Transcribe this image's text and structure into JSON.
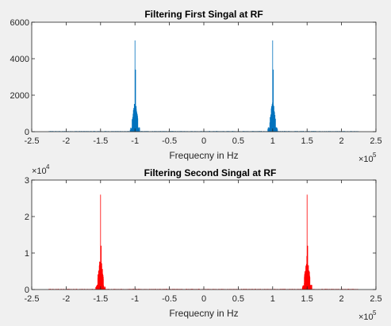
{
  "figure_background": "#f0f0f0",
  "chart_data": [
    {
      "type": "line",
      "title": "Filtering First Singal at RF",
      "xlabel": "Frequecny in Hz",
      "ylabel": "",
      "xlim": [
        -250000,
        250000
      ],
      "ylim": [
        0,
        6000
      ],
      "x_tick_values": [
        -250000,
        -200000,
        -150000,
        -100000,
        -50000,
        0,
        50000,
        100000,
        150000,
        200000,
        250000
      ],
      "x_tick_labels": [
        "-2.5",
        "-2",
        "-1.5",
        "-1",
        "-0.5",
        "0",
        "0.5",
        "1",
        "1.5",
        "2",
        "2.5"
      ],
      "y_tick_values": [
        0,
        2000,
        4000,
        6000
      ],
      "y_tick_labels": [
        "0",
        "2000",
        "4000",
        "6000"
      ],
      "x_exponent": "5",
      "y_exponent": "",
      "grid": false,
      "series": [
        {
          "color": "#0072bd",
          "peaks": [
            {
              "center": -100000,
              "height": 5000,
              "values_near_center": [
                1300,
                1500,
                5000,
                3400,
                1400
              ]
            },
            {
              "center": 100000,
              "height": 5000,
              "values_near_center": [
                1300,
                1500,
                5000,
                3400,
                1400
              ]
            }
          ],
          "noise_floor": 30
        }
      ]
    },
    {
      "type": "line",
      "title": "Filtering Second Singal at RF",
      "xlabel": "Frequecny in Hz",
      "ylabel": "",
      "xlim": [
        -250000,
        250000
      ],
      "ylim": [
        0,
        30000
      ],
      "x_tick_values": [
        -250000,
        -200000,
        -150000,
        -100000,
        -50000,
        0,
        50000,
        100000,
        150000,
        200000,
        250000
      ],
      "x_tick_labels": [
        "-2.5",
        "-2",
        "-1.5",
        "-1",
        "-0.5",
        "0",
        "0.5",
        "1",
        "1.5",
        "2",
        "2.5"
      ],
      "y_tick_values": [
        0,
        10000,
        20000,
        30000
      ],
      "y_tick_labels": [
        "0",
        "1",
        "2",
        "3"
      ],
      "x_exponent": "5",
      "y_exponent": "4",
      "grid": false,
      "series": [
        {
          "color": "#ff0000",
          "peaks": [
            {
              "center": -150000,
              "height": 26000,
              "values_near_center": [
                6500,
                7000,
                26000,
                12000,
                6500
              ]
            },
            {
              "center": 150000,
              "height": 26000,
              "values_near_center": [
                6500,
                7000,
                26000,
                12000,
                6500
              ]
            }
          ],
          "noise_floor": 150
        }
      ]
    }
  ]
}
